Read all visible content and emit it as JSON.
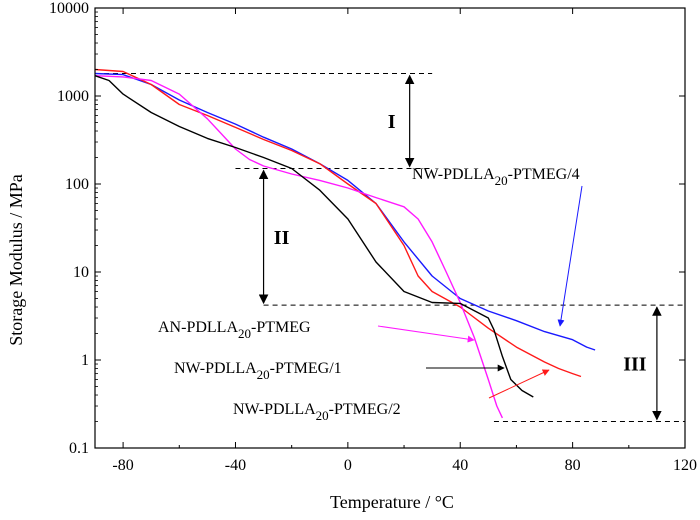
{
  "chart_data": {
    "type": "line",
    "title": "",
    "xlabel": "Temperature / °C",
    "ylabel": "Storage Modulus / MPa",
    "xlim": [
      -90,
      120
    ],
    "ylim": [
      0.1,
      10000
    ],
    "yscale": "log",
    "xticks": [
      -80,
      -40,
      0,
      40,
      80,
      120
    ],
    "xtick_labels": [
      "-80",
      "-40",
      "0",
      "40",
      "80",
      "120"
    ],
    "yticks": [
      0.1,
      1,
      10,
      100,
      1000,
      10000
    ],
    "ytick_labels": [
      "0.1",
      "1",
      "10",
      "100",
      "1000",
      "10000"
    ],
    "series": [
      {
        "name": "NW-PDLLA20-PTMEG/4",
        "color": "#1a1aff",
        "x": [
          -90,
          -80,
          -70,
          -60,
          -50,
          -40,
          -30,
          -20,
          -10,
          0,
          10,
          20,
          30,
          40,
          50,
          60,
          70,
          80,
          85,
          88
        ],
        "y": [
          1800,
          1750,
          1350,
          900,
          650,
          480,
          340,
          250,
          170,
          110,
          60,
          22,
          9,
          5,
          3.6,
          2.8,
          2.1,
          1.7,
          1.4,
          1.3
        ]
      },
      {
        "name": "NW-PDLLA20-PTMEG/2",
        "color": "#ff1a1a",
        "x": [
          -90,
          -80,
          -70,
          -60,
          -50,
          -40,
          -30,
          -20,
          -10,
          0,
          10,
          20,
          25,
          30,
          40,
          50,
          60,
          70,
          75,
          80,
          83
        ],
        "y": [
          2000,
          1900,
          1350,
          800,
          600,
          440,
          320,
          240,
          170,
          100,
          60,
          20,
          9,
          6,
          4,
          2.3,
          1.4,
          0.95,
          0.8,
          0.7,
          0.65
        ]
      },
      {
        "name": "AN-PDLLA20-PTMEG",
        "color": "#ff1aff",
        "x": [
          -90,
          -80,
          -70,
          -60,
          -50,
          -40,
          -35,
          -30,
          -20,
          -10,
          0,
          10,
          20,
          25,
          30,
          35,
          40,
          45,
          50,
          53,
          55
        ],
        "y": [
          1700,
          1650,
          1500,
          1050,
          550,
          250,
          190,
          160,
          130,
          110,
          90,
          70,
          55,
          40,
          22,
          10,
          4.5,
          1.8,
          0.6,
          0.3,
          0.22
        ]
      },
      {
        "name": "NW-PDLLA20-PTMEG/1",
        "color": "#000000",
        "x": [
          -90,
          -85,
          -80,
          -70,
          -60,
          -50,
          -40,
          -30,
          -20,
          -10,
          0,
          10,
          20,
          30,
          40,
          50,
          52,
          55,
          58,
          62,
          66
        ],
        "y": [
          1700,
          1500,
          1050,
          650,
          450,
          330,
          260,
          200,
          150,
          85,
          40,
          13,
          6,
          4.5,
          4.4,
          3,
          2.2,
          1.1,
          0.6,
          0.45,
          0.38
        ]
      }
    ],
    "legend_labels": [
      {
        "series": "NW-PDLLA20-PTMEG/4",
        "main": "NW-PDLLA",
        "sub": "20",
        "rest": "-PTMEG/4"
      },
      {
        "series": "AN-PDLLA20-PTMEG",
        "main": "AN-PDLLA",
        "sub": "20",
        "rest": "-PTMEG"
      },
      {
        "series": "NW-PDLLA20-PTMEG/1",
        "main": "NW-PDLLA",
        "sub": "20",
        "rest": "-PTMEG/1"
      },
      {
        "series": "NW-PDLLA20-PTMEG/2",
        "main": "NW-PDLLA",
        "sub": "20",
        "rest": "-PTMEG/2"
      }
    ],
    "reference_lines": [
      {
        "y": 1800,
        "x_from": -90,
        "x_to": 30
      },
      {
        "y": 150,
        "x_from": -40,
        "x_to": 30
      },
      {
        "y": 4.2,
        "x_from": -30,
        "x_to": 120
      },
      {
        "y": 0.2,
        "x_from": 52,
        "x_to": 120
      }
    ],
    "regions": [
      {
        "label": "I",
        "x": 22,
        "y_top": 1800,
        "y_bottom": 150
      },
      {
        "label": "II",
        "x": -30,
        "y_top": 150,
        "y_bottom": 4.2
      },
      {
        "label": "III",
        "x": 110,
        "y_top": 4.2,
        "y_bottom": 0.2
      }
    ]
  }
}
